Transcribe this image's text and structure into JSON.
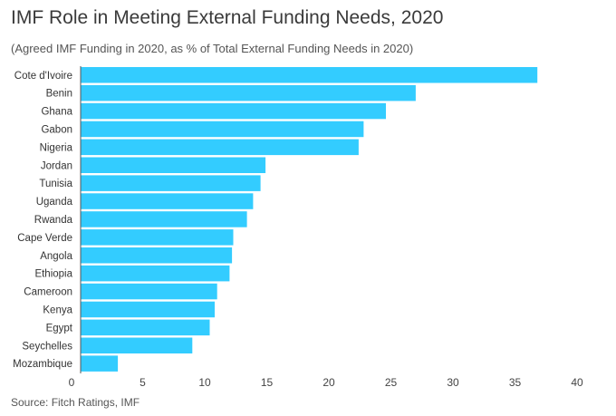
{
  "chart_data": {
    "type": "bar",
    "orientation": "horizontal",
    "title": "IMF Role in Meeting External Funding Needs, 2020",
    "subtitle": "(Agreed IMF Funding in 2020, as % of Total External Funding Needs in 2020)",
    "source": "Source: Fitch Ratings, IMF",
    "categories": [
      "Cote d'Ivoire",
      "Benin",
      "Ghana",
      "Gabon",
      "Nigeria",
      "Jordan",
      "Tunisia",
      "Uganda",
      "Rwanda",
      "Cape Verde",
      "Angola",
      "Ethiopia",
      "Cameroon",
      "Kenya",
      "Egypt",
      "Seychelles",
      "Mozambique"
    ],
    "values": [
      36.8,
      27.0,
      24.6,
      22.8,
      22.4,
      14.9,
      14.5,
      13.9,
      13.4,
      12.3,
      12.2,
      12.0,
      11.0,
      10.8,
      10.4,
      9.0,
      3.0
    ],
    "xlim": [
      0,
      40
    ],
    "xticks": [
      "0",
      "5",
      "10",
      "15",
      "20",
      "25",
      "30",
      "35",
      "40"
    ],
    "xlabel": "",
    "ylabel": "",
    "grid": false,
    "bar_color": "#33ccff"
  }
}
